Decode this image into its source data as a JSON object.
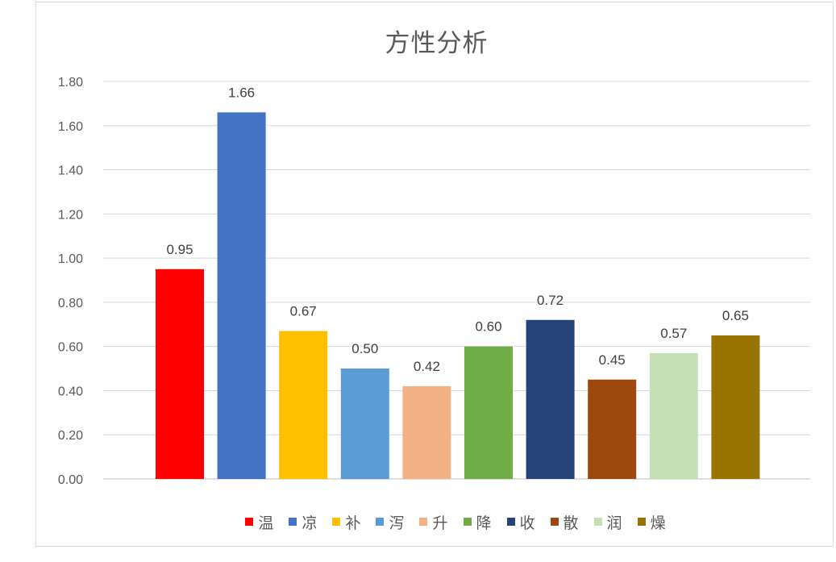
{
  "chart_data": {
    "type": "bar",
    "title": "方性分析",
    "xlabel": "",
    "ylabel": "",
    "ylim": [
      0,
      1.8
    ],
    "yticks": [
      "0.00",
      "0.20",
      "0.40",
      "0.60",
      "0.80",
      "1.00",
      "1.20",
      "1.40",
      "1.60",
      "1.80"
    ],
    "grid": true,
    "legend_position": "bottom",
    "categories": [
      "温",
      "凉",
      "补",
      "泻",
      "升",
      "降",
      "收",
      "散",
      "润",
      "燥"
    ],
    "values": [
      0.95,
      1.66,
      0.67,
      0.5,
      0.42,
      0.6,
      0.72,
      0.45,
      0.57,
      0.65
    ],
    "value_labels": [
      "0.95",
      "1.66",
      "0.67",
      "0.50",
      "0.42",
      "0.60",
      "0.72",
      "0.45",
      "0.57",
      "0.65"
    ],
    "colors": [
      "#ff0000",
      "#4472c4",
      "#ffc000",
      "#5b9bd5",
      "#f4b183",
      "#70ad47",
      "#264478",
      "#9e480e",
      "#c5e0b4",
      "#997300"
    ]
  }
}
